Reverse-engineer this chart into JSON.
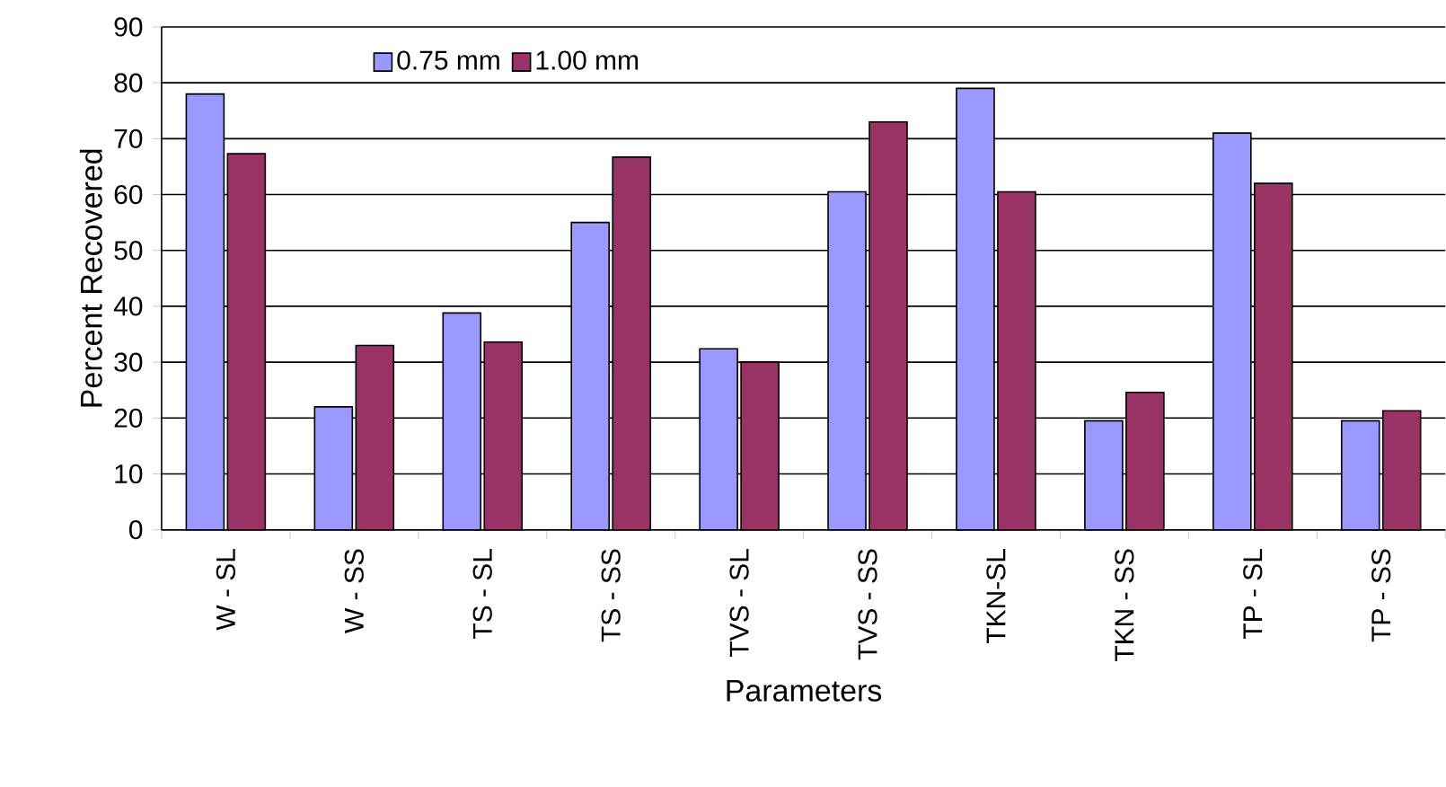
{
  "chart_data": {
    "type": "bar",
    "xlabel": "Parameters",
    "ylabel": "Percent Recovered",
    "categories": [
      "W - SL",
      "W - SS",
      "TS - SL",
      "TS - SS",
      "TVS - SL",
      "TVS - SS",
      "TKN-SL",
      "TKN - SS",
      "TP - SL",
      "TP - SS"
    ],
    "series": [
      {
        "name": "0.75 mm",
        "color": "#9999ff",
        "values": [
          78,
          22,
          38.8,
          55,
          32.4,
          60.5,
          79,
          19.5,
          71,
          19.5
        ]
      },
      {
        "name": "1.00 mm",
        "color": "#993366",
        "values": [
          67.3,
          33,
          33.6,
          66.7,
          30,
          73,
          60.5,
          24.6,
          62,
          21.3
        ]
      }
    ],
    "ylim": [
      0,
      90
    ],
    "yticks": [
      0,
      10,
      20,
      30,
      40,
      50,
      60,
      70,
      80,
      90
    ],
    "grid": "y",
    "legend": "top"
  }
}
